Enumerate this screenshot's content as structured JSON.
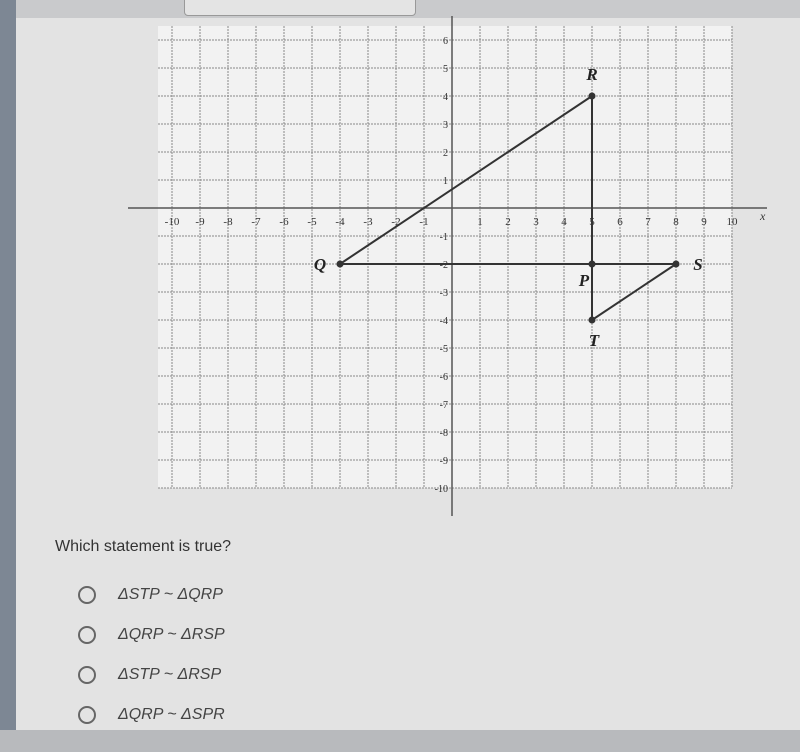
{
  "graph": {
    "axis_label": "x",
    "xticks": [
      -10,
      -9,
      -8,
      -7,
      -6,
      -5,
      -4,
      -3,
      -2,
      -1,
      1,
      2,
      3,
      4,
      5,
      6,
      7,
      8,
      9,
      10
    ],
    "yticks": [
      -10,
      -9,
      -8,
      -7,
      -6,
      -5,
      -4,
      -3,
      -2,
      -1,
      1,
      2,
      3,
      4,
      5,
      6
    ],
    "points": [
      {
        "label": "Q",
        "x": -4,
        "y": -2
      },
      {
        "label": "R",
        "x": 5,
        "y": 4
      },
      {
        "label": "S",
        "x": 8,
        "y": -2
      },
      {
        "label": "P",
        "x": 5,
        "y": -2
      },
      {
        "label": "T",
        "x": 5,
        "y": -4
      }
    ]
  },
  "question": "Which statement is true?",
  "options": [
    "ΔSTP ~ ΔQRP",
    "ΔQRP ~ ΔRSP",
    "ΔSTP ~ ΔRSP",
    "ΔQRP ~ ΔSPR"
  ]
}
